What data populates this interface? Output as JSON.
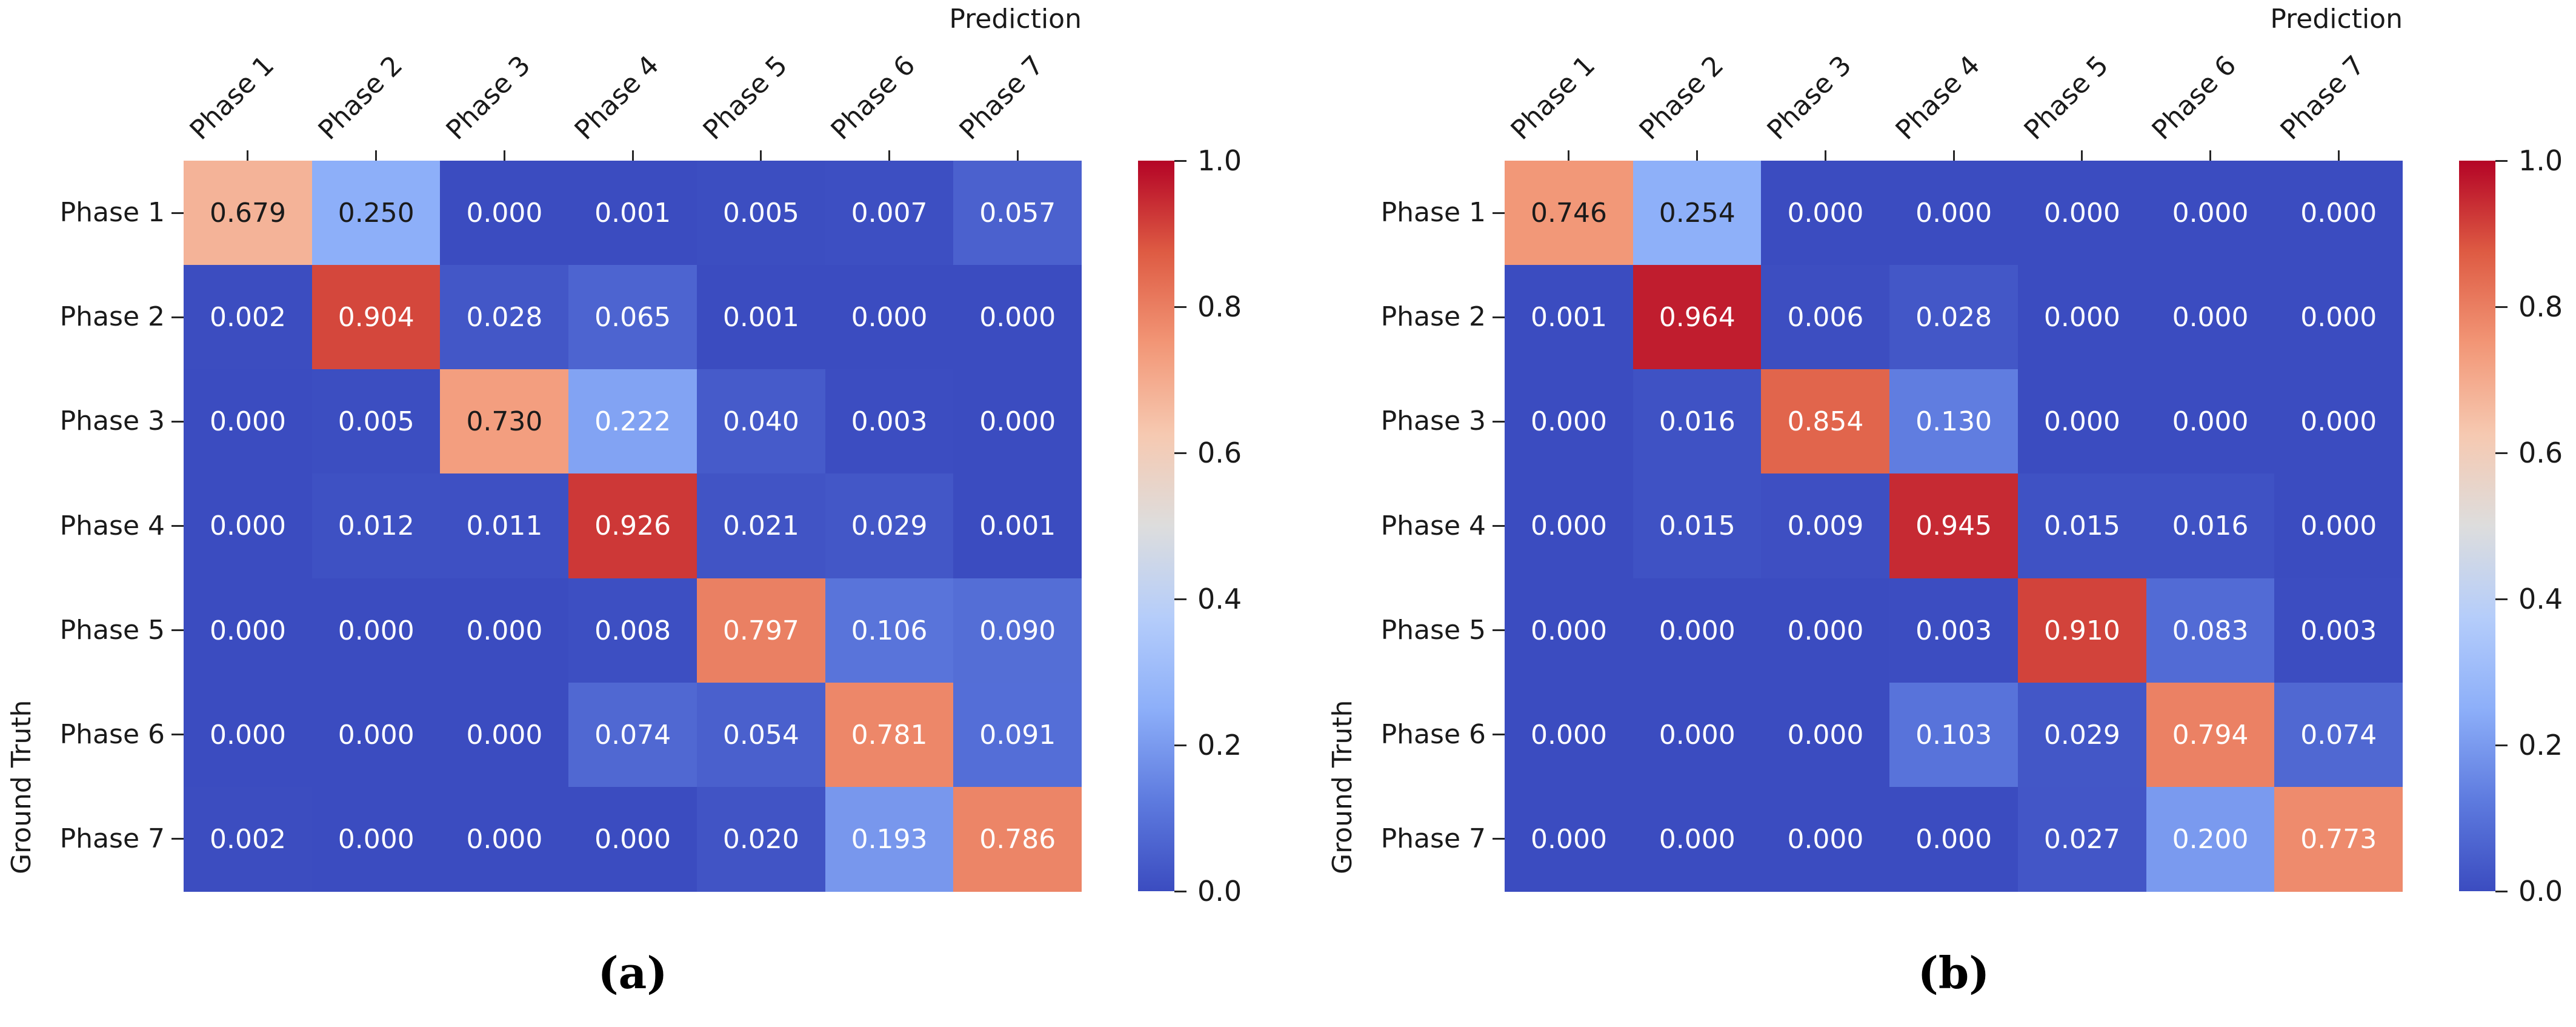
{
  "chart_data": [
    {
      "type": "heatmap",
      "panel_label": "(a)",
      "xlabel": "Prediction",
      "ylabel": "Ground Truth",
      "x_categories": [
        "Phase 1",
        "Phase 2",
        "Phase 3",
        "Phase 4",
        "Phase 5",
        "Phase 6",
        "Phase 7"
      ],
      "y_categories": [
        "Phase 1",
        "Phase 2",
        "Phase 3",
        "Phase 4",
        "Phase 5",
        "Phase 6",
        "Phase 7"
      ],
      "values": [
        [
          0.679,
          0.25,
          0.0,
          0.001,
          0.005,
          0.007,
          0.057
        ],
        [
          0.002,
          0.904,
          0.028,
          0.065,
          0.001,
          0.0,
          0.0
        ],
        [
          0.0,
          0.005,
          0.73,
          0.222,
          0.04,
          0.003,
          0.0
        ],
        [
          0.0,
          0.012,
          0.011,
          0.926,
          0.021,
          0.029,
          0.001
        ],
        [
          0.0,
          0.0,
          0.0,
          0.008,
          0.797,
          0.106,
          0.09
        ],
        [
          0.0,
          0.0,
          0.0,
          0.074,
          0.054,
          0.781,
          0.091
        ],
        [
          0.002,
          0.0,
          0.0,
          0.0,
          0.02,
          0.193,
          0.786
        ]
      ],
      "vmin": 0.0,
      "vmax": 1.0,
      "value_decimals": 3,
      "colormap": "coolwarm",
      "colorbar_position": "right",
      "colorbar_tick_labels": [
        "1.0",
        "0.8",
        "0.6",
        "0.4",
        "0.2",
        "0.0"
      ],
      "colorbar_tick_values": [
        1.0,
        0.8,
        0.6,
        0.4,
        0.2,
        0.0
      ],
      "grid": false
    },
    {
      "type": "heatmap",
      "panel_label": "(b)",
      "xlabel": "Prediction",
      "ylabel": "Ground Truth",
      "x_categories": [
        "Phase 1",
        "Phase 2",
        "Phase 3",
        "Phase 4",
        "Phase 5",
        "Phase 6",
        "Phase 7"
      ],
      "y_categories": [
        "Phase 1",
        "Phase 2",
        "Phase 3",
        "Phase 4",
        "Phase 5",
        "Phase 6",
        "Phase 7"
      ],
      "values": [
        [
          0.746,
          0.254,
          0.0,
          0.0,
          0.0,
          0.0,
          0.0
        ],
        [
          0.001,
          0.964,
          0.006,
          0.028,
          0.0,
          0.0,
          0.0
        ],
        [
          0.0,
          0.016,
          0.854,
          0.13,
          0.0,
          0.0,
          0.0
        ],
        [
          0.0,
          0.015,
          0.009,
          0.945,
          0.015,
          0.016,
          0.0
        ],
        [
          0.0,
          0.0,
          0.0,
          0.003,
          0.91,
          0.083,
          0.003
        ],
        [
          0.0,
          0.0,
          0.0,
          0.103,
          0.029,
          0.794,
          0.074
        ],
        [
          0.0,
          0.0,
          0.0,
          0.0,
          0.027,
          0.2,
          0.773
        ]
      ],
      "vmin": 0.0,
      "vmax": 1.0,
      "value_decimals": 3,
      "colormap": "coolwarm",
      "colorbar_position": "right",
      "colorbar_tick_labels": [
        "1.0",
        "0.8",
        "0.6",
        "0.4",
        "0.2",
        "0.0"
      ],
      "colorbar_tick_values": [
        1.0,
        0.8,
        0.6,
        0.4,
        0.2,
        0.0
      ],
      "grid": false
    }
  ],
  "colors": {
    "colormap_anchors": [
      [
        0.0,
        "#3B4CC0"
      ],
      [
        0.125,
        "#5E7BDF"
      ],
      [
        0.25,
        "#8DAFF9"
      ],
      [
        0.375,
        "#B5CDFA"
      ],
      [
        0.5,
        "#DDDDDD"
      ],
      [
        0.625,
        "#F6C9B1"
      ],
      [
        0.75,
        "#F29676"
      ],
      [
        0.875,
        "#DE5B43"
      ],
      [
        1.0,
        "#B40426"
      ]
    ],
    "annotation_dark_text": "#1A1A1A",
    "annotation_light_text": "#FFFFFF",
    "luminance_threshold": 0.65,
    "axis_text": "#1A1A1A",
    "background": "#FFFFFF"
  }
}
